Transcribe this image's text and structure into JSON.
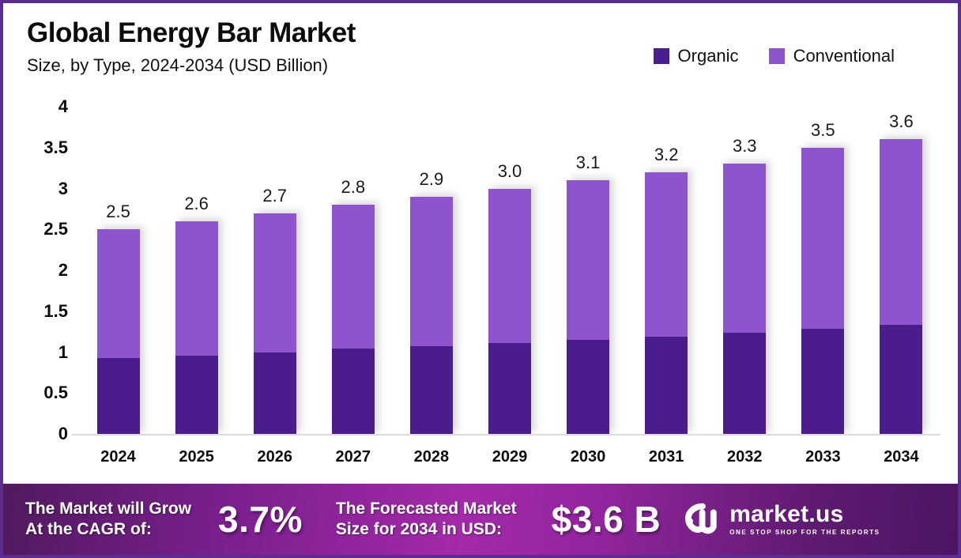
{
  "header": {
    "title": "Global Energy Bar Market",
    "subtitle": "Size, by Type, 2024-2034 (USD Billion)"
  },
  "colors": {
    "organic": "#4A1C8C",
    "conventional": "#8E54CD",
    "border": "#5B2D90",
    "banner_dark": "#511A5E",
    "banner_bright": "#A32AA8",
    "baseline": "#DCDCDC"
  },
  "chart_data": {
    "type": "bar",
    "stacked": true,
    "title": "Global Energy Bar Market",
    "subtitle": "Size, by Type, 2024-2034 (USD Billion)",
    "categories": [
      "2024",
      "2025",
      "2026",
      "2027",
      "2028",
      "2029",
      "2030",
      "2031",
      "2032",
      "2033",
      "2034"
    ],
    "series": [
      {
        "name": "Organic",
        "color": "#4A1C8C",
        "values": [
          0.93,
          0.96,
          1.0,
          1.04,
          1.07,
          1.11,
          1.15,
          1.19,
          1.24,
          1.29,
          1.33
        ]
      },
      {
        "name": "Conventional",
        "color": "#8E54CD",
        "values": [
          1.57,
          1.64,
          1.7,
          1.76,
          1.83,
          1.89,
          1.95,
          2.01,
          2.06,
          2.21,
          2.27
        ]
      }
    ],
    "totals": [
      2.5,
      2.6,
      2.7,
      2.8,
      2.9,
      3.0,
      3.1,
      3.2,
      3.3,
      3.5,
      3.6
    ],
    "total_labels": [
      "2.5",
      "2.6",
      "2.7",
      "2.8",
      "2.9",
      "3.0",
      "3.1",
      "3.2",
      "3.3",
      "3.5",
      "3.6"
    ],
    "ylim": [
      0,
      4
    ],
    "yticks": [
      0,
      0.5,
      1,
      1.5,
      2,
      2.5,
      3,
      3.5,
      4
    ],
    "ytick_labels": [
      "0",
      "0.5",
      "1",
      "1.5",
      "2",
      "2.5",
      "3",
      "3.5",
      "4"
    ],
    "xlabel": "",
    "ylabel": "",
    "grid": false,
    "legend_position": "top-right"
  },
  "banner": {
    "cagr_line1": "The Market will Grow",
    "cagr_line2": "At the CAGR of:",
    "cagr_value": "3.7%",
    "forecast_line1": "The Forecasted Market",
    "forecast_line2": "Size for 2034 in USD:",
    "forecast_value": "$3.6 B",
    "logo_name": "market.us",
    "logo_tagline": "ONE STOP SHOP FOR THE REPORTS"
  }
}
